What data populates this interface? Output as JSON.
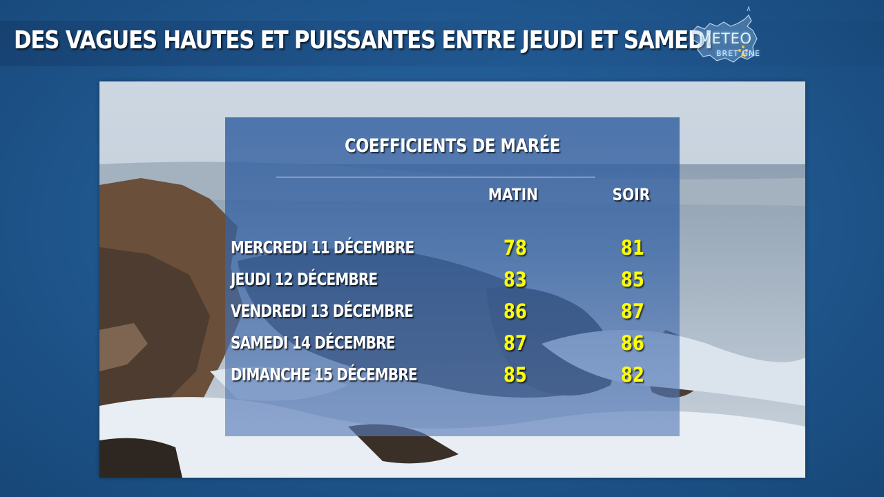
{
  "header": {
    "title": "DES VAGUES HAUTES ET PUISSANTES ENTRE JEUDI ET SAMEDI"
  },
  "logo": {
    "main": "METEO",
    "sub": "BRET GNE",
    "icon": "brittany-map-ermine-icon"
  },
  "panel": {
    "heading": "COEFFICIENTS DE MARÉE",
    "columns": [
      "MATIN",
      "SOIR"
    ],
    "rows": [
      {
        "day": "MERCREDI 11 DÉCEMBRE",
        "matin": "78",
        "soir": "81"
      },
      {
        "day": "JEUDI 12 DÉCEMBRE",
        "matin": "83",
        "soir": "85"
      },
      {
        "day": "VENDREDI 13 DÉCEMBRE",
        "matin": "86",
        "soir": "87"
      },
      {
        "day": "SAMEDI 14 DÉCEMBRE",
        "matin": "87",
        "soir": "86"
      },
      {
        "day": "DIMANCHE 15 DÉCEMBRE",
        "matin": "85",
        "soir": "82"
      }
    ]
  },
  "colors": {
    "background": "#215a92",
    "value_yellow": "#ffff00",
    "text_white": "#ffffff"
  }
}
